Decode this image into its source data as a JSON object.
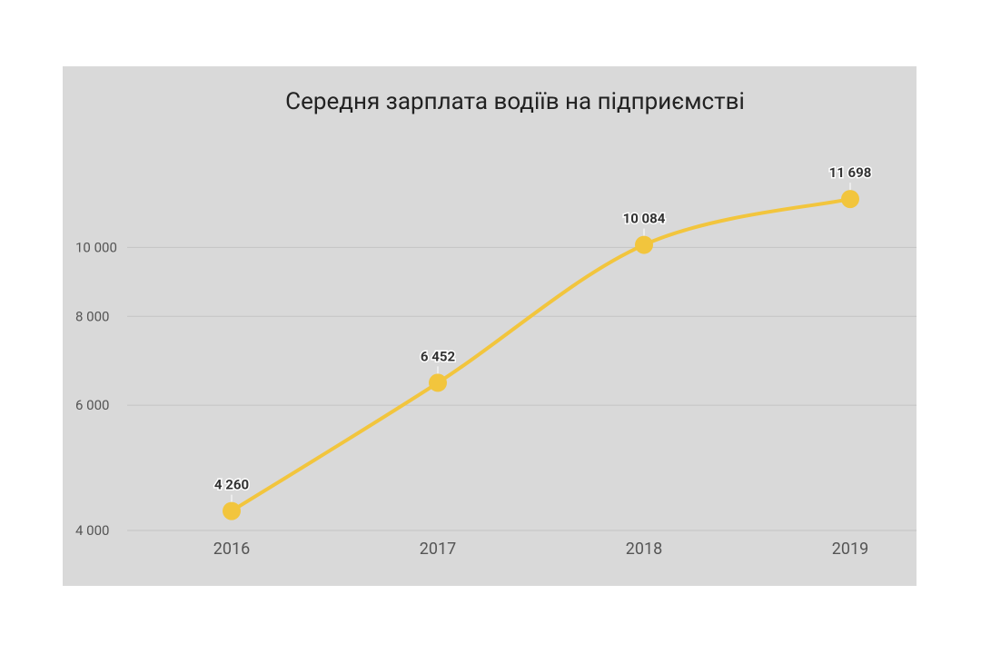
{
  "chart_data": {
    "type": "line",
    "title": "Середня зарплата водіїв на підприємстві",
    "categories": [
      "2016",
      "2017",
      "2018",
      "2019"
    ],
    "values": [
      4260,
      6452,
      10084,
      11698
    ],
    "value_labels": [
      "4 260",
      "6 452",
      "10 084",
      "11 698"
    ],
    "color": "#f2c53d",
    "log_scale": true,
    "ylim": [
      4000,
      14000
    ],
    "yticks": [
      {
        "value": 4000,
        "label": "4 000"
      },
      {
        "value": 6000,
        "label": "6 000"
      },
      {
        "value": 8000,
        "label": "8 000"
      },
      {
        "value": 10000,
        "label": "10 000"
      }
    ],
    "grid": true
  }
}
